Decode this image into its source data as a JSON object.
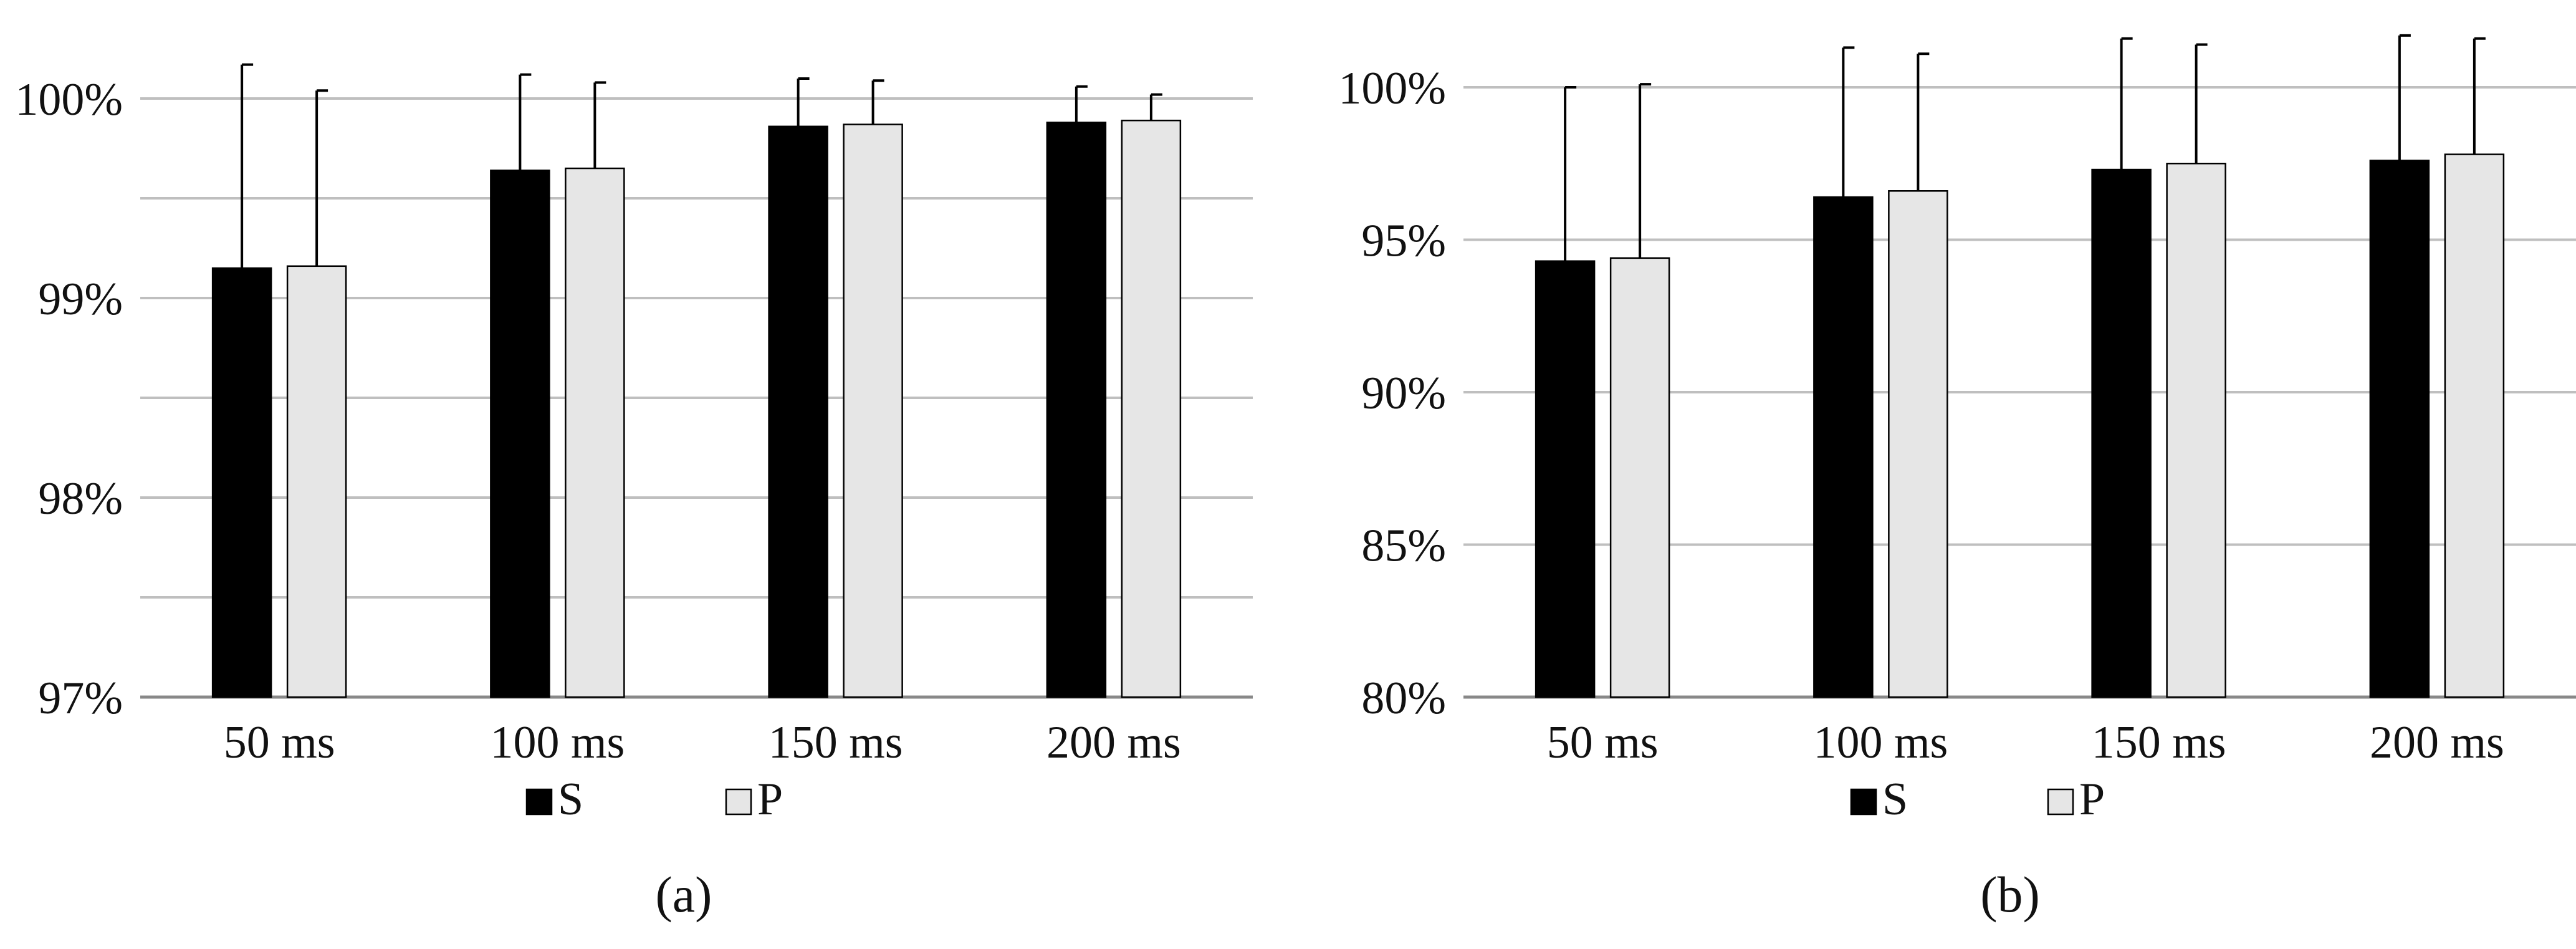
{
  "colors": {
    "S": "#000000",
    "P": "#e6e6e6",
    "grid": "#bfbfbf",
    "axis": "#888888"
  },
  "chart_data": [
    {
      "type": "bar",
      "caption": "(a)",
      "categories": [
        "50 ms",
        "100 ms",
        "150 ms",
        "200 ms"
      ],
      "ylim": [
        97,
        100.3
      ],
      "ytick_values": [
        97,
        98,
        99,
        100
      ],
      "ytick_labels": [
        "97%",
        "98%",
        "99%",
        "100%"
      ],
      "minor_grid": [
        97.5,
        98.5,
        99.5
      ],
      "grid": true,
      "legend_position": "bottom",
      "series": [
        {
          "name": "S",
          "values": [
            99.15,
            99.64,
            99.86,
            99.88
          ],
          "errors": [
            1.02,
            0.48,
            0.24,
            0.18
          ]
        },
        {
          "name": "P",
          "values": [
            99.16,
            99.65,
            99.87,
            99.89
          ],
          "errors": [
            0.88,
            0.43,
            0.22,
            0.13
          ]
        }
      ]
    },
    {
      "type": "bar",
      "caption": "(b)",
      "categories": [
        "50 ms",
        "100 ms",
        "150 ms",
        "200 ms"
      ],
      "ylim": [
        80,
        102
      ],
      "ytick_values": [
        80,
        85,
        90,
        95,
        100
      ],
      "ytick_labels": [
        "80%",
        "85%",
        "90%",
        "95%",
        "100%"
      ],
      "minor_grid": [],
      "grid": true,
      "legend_position": "bottom",
      "series": [
        {
          "name": "S",
          "values": [
            94.3,
            96.4,
            97.3,
            97.6
          ],
          "errors": [
            5.7,
            4.9,
            4.3,
            4.1
          ]
        },
        {
          "name": "P",
          "values": [
            94.4,
            96.6,
            97.5,
            97.8
          ],
          "errors": [
            5.7,
            4.5,
            3.9,
            3.8
          ]
        }
      ]
    }
  ]
}
